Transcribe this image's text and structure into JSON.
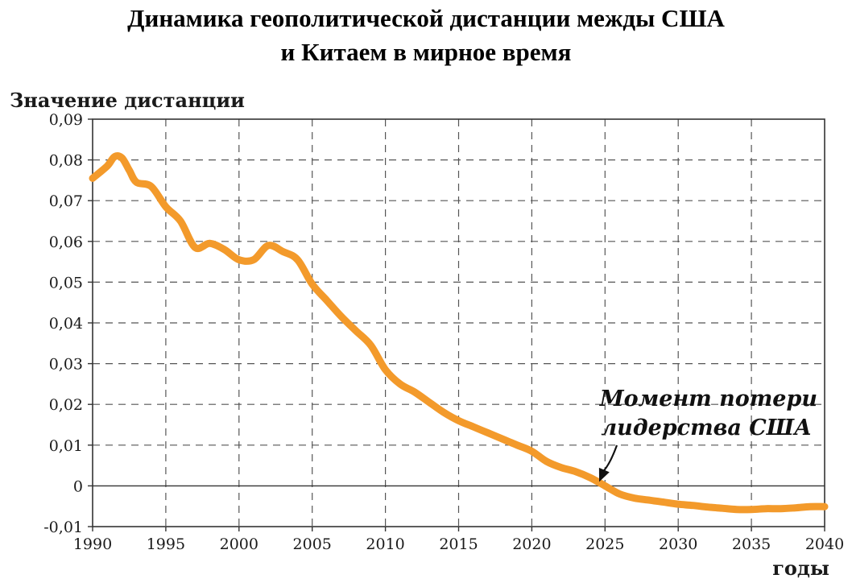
{
  "chart_data": {
    "type": "line",
    "title_line1": "Динамика геополитической дистанции межды США",
    "title_line2": "и Китаем в мирное время",
    "ylabel": "Значение дистанции",
    "xlabel": "годы",
    "xlim": [
      1990,
      2040
    ],
    "ylim": [
      -0.01,
      0.09
    ],
    "xticks": [
      1990,
      1995,
      2000,
      2005,
      2010,
      2015,
      2020,
      2025,
      2030,
      2035,
      2040
    ],
    "xtick_labels": [
      "1990",
      "1995",
      "2000",
      "2005",
      "2010",
      "2015",
      "2020",
      "2025",
      "2030",
      "2035",
      "2040"
    ],
    "yticks": [
      -0.01,
      0,
      0.01,
      0.02,
      0.03,
      0.04,
      0.05,
      0.06,
      0.07,
      0.08,
      0.09
    ],
    "ytick_labels": [
      "-0,01",
      "0",
      "0,01",
      "0,02",
      "0,03",
      "0,04",
      "0,05",
      "0,06",
      "0,07",
      "0,08",
      "0,09"
    ],
    "grid": true,
    "line_color": "#f39a2b",
    "series": [
      {
        "points": [
          [
            1990,
            0.0755
          ],
          [
            1991,
            0.0785
          ],
          [
            1991.5,
            0.0808
          ],
          [
            1992,
            0.0805
          ],
          [
            1992.5,
            0.0775
          ],
          [
            1993,
            0.0745
          ],
          [
            1994,
            0.0735
          ],
          [
            1995,
            0.0685
          ],
          [
            1996,
            0.065
          ],
          [
            1997,
            0.0585
          ],
          [
            1998,
            0.0595
          ],
          [
            1999,
            0.058
          ],
          [
            2000,
            0.0555
          ],
          [
            2001,
            0.0555
          ],
          [
            2002,
            0.059
          ],
          [
            2003,
            0.0575
          ],
          [
            2004,
            0.0555
          ],
          [
            2005,
            0.0495
          ],
          [
            2006,
            0.0455
          ],
          [
            2007,
            0.0415
          ],
          [
            2008,
            0.038
          ],
          [
            2009,
            0.0345
          ],
          [
            2010,
            0.0285
          ],
          [
            2011,
            0.025
          ],
          [
            2012,
            0.023
          ],
          [
            2013,
            0.0205
          ],
          [
            2014,
            0.018
          ],
          [
            2015,
            0.016
          ],
          [
            2016,
            0.0145
          ],
          [
            2017,
            0.013
          ],
          [
            2018,
            0.0115
          ],
          [
            2019,
            0.01
          ],
          [
            2020,
            0.0085
          ],
          [
            2021,
            0.006
          ],
          [
            2022,
            0.0045
          ],
          [
            2023,
            0.0035
          ],
          [
            2024,
            0.002
          ],
          [
            2025,
            0.0
          ],
          [
            2026,
            -0.002
          ],
          [
            2027,
            -0.003
          ],
          [
            2028,
            -0.0035
          ],
          [
            2029,
            -0.004
          ],
          [
            2030,
            -0.0045
          ],
          [
            2031,
            -0.0048
          ],
          [
            2032,
            -0.0052
          ],
          [
            2033,
            -0.0055
          ],
          [
            2034,
            -0.0058
          ],
          [
            2035,
            -0.0058
          ],
          [
            2036,
            -0.0056
          ],
          [
            2037,
            -0.0056
          ],
          [
            2038,
            -0.0054
          ],
          [
            2039,
            -0.0051
          ],
          [
            2040,
            -0.0051
          ]
        ]
      }
    ],
    "annotation": {
      "line1": "Момент потери",
      "line2": "лидерства США",
      "arrow_target": [
        2024.6,
        0.001
      ]
    }
  }
}
